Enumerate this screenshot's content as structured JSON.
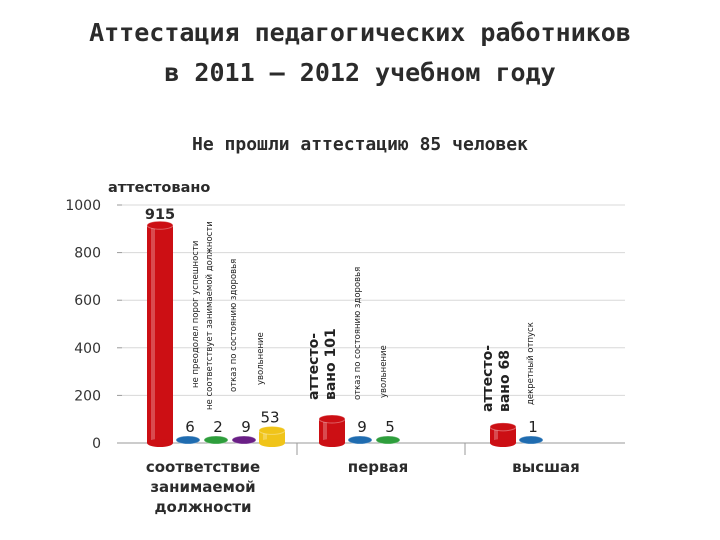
{
  "title_line1": "Аттестация педагогических работников",
  "title_line2": "в 2011 – 2012 учебном году",
  "subtitle": "Не прошли аттестацию 85 человек",
  "colors": {
    "red": "#cc0f14",
    "blue": "#1f6cb0",
    "green": "#2e9e3c",
    "purple": "#6a1f86",
    "yellow": "#f0c419"
  },
  "chart_data": {
    "type": "bar",
    "yaxis": {
      "min": 0,
      "max": 1000,
      "ticks": [
        "0",
        "200",
        "400",
        "600",
        "800",
        "1000"
      ]
    },
    "groups": [
      {
        "label": [
          "соответствие",
          "занимаемой",
          "должности"
        ]
      },
      {
        "label": [
          "первая"
        ]
      },
      {
        "label": [
          "высшая"
        ]
      }
    ],
    "bars": [
      {
        "group": 0,
        "slot": 0,
        "value": 915,
        "label": "915",
        "color": "red"
      },
      {
        "group": 0,
        "slot": 1,
        "value": 6,
        "label": "6",
        "color": "blue"
      },
      {
        "group": 0,
        "slot": 2,
        "value": 2,
        "label": "2",
        "color": "green"
      },
      {
        "group": 0,
        "slot": 3,
        "value": 9,
        "label": "9",
        "color": "purple"
      },
      {
        "group": 0,
        "slot": 4,
        "value": 53,
        "label": "53",
        "color": "yellow"
      },
      {
        "group": 1,
        "slot": 0,
        "value": 101,
        "label": "",
        "color": "red"
      },
      {
        "group": 1,
        "slot": 1,
        "value": 9,
        "label": "9",
        "color": "blue"
      },
      {
        "group": 1,
        "slot": 2,
        "value": 5,
        "label": "5",
        "color": "green"
      },
      {
        "group": 2,
        "slot": 0,
        "value": 68,
        "label": "",
        "color": "red"
      },
      {
        "group": 2,
        "slot": 1,
        "value": 1,
        "label": "1",
        "color": "blue"
      }
    ],
    "annotations": {
      "attested_1": "аттестовано",
      "ne_preodolel": "не преодолел порог успешности",
      "ne_sootv": "не соответствует занимаемой должности",
      "otkaz_1": "отказ по состоянию здоровья",
      "uvolnenie_1": "увольнение",
      "attested_2_a": "аттесто-",
      "attested_2_b": "вано 101",
      "otkaz_2": "отказ по состоянию здоровья",
      "uvolnenie_2": "увольнение",
      "attested_3_a": "аттесто-",
      "attested_3_b": "вано 68",
      "dekret": "декретный отпуск"
    }
  }
}
